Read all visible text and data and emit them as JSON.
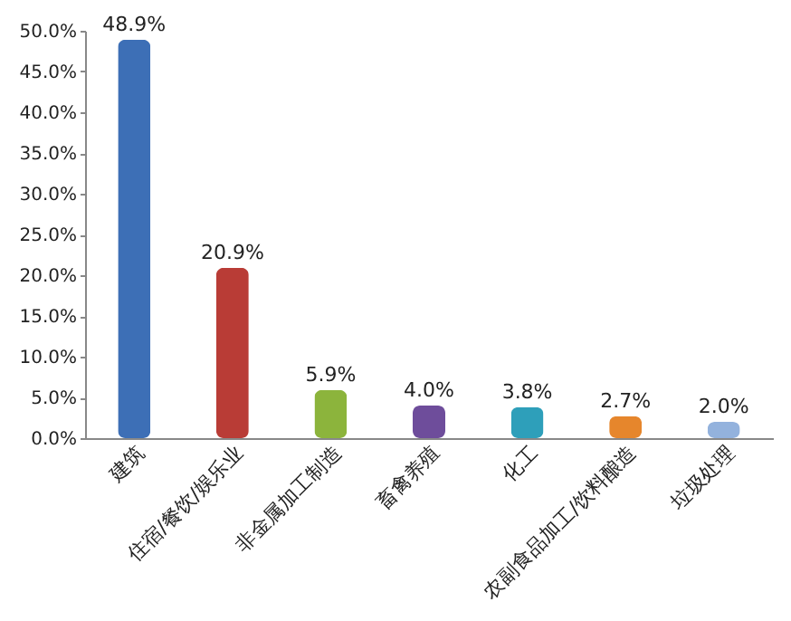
{
  "chart_data": {
    "type": "bar",
    "categories": [
      "建筑",
      "住宿/餐饮/娱乐业",
      "非金属加工制造",
      "畜禽养殖",
      "化工",
      "农副食品加工/饮料酿造",
      "垃圾处理"
    ],
    "values": [
      48.9,
      20.9,
      5.9,
      4.0,
      3.8,
      2.7,
      2.0
    ],
    "colors": [
      "#3d6fb6",
      "#b93c36",
      "#8cb43c",
      "#6e4d9b",
      "#2e9fba",
      "#e6862c",
      "#93b2dd"
    ],
    "value_labels": [
      "48.9%",
      "20.9%",
      "5.9%",
      "4.0%",
      "3.8%",
      "2.7%",
      "2.0%"
    ],
    "ylim": [
      0,
      50
    ],
    "yticks": [
      {
        "value": 0,
        "label": "0.0%"
      },
      {
        "value": 5,
        "label": "5.0%"
      },
      {
        "value": 10,
        "label": "10.0%"
      },
      {
        "value": 15,
        "label": "15.0%"
      },
      {
        "value": 20,
        "label": "20.0%"
      },
      {
        "value": 25,
        "label": "25.0%"
      },
      {
        "value": 30,
        "label": "30.0%"
      },
      {
        "value": 35,
        "label": "35.0%"
      },
      {
        "value": 40,
        "label": "40.0%"
      },
      {
        "value": 45,
        "label": "45.0%"
      },
      {
        "value": 50,
        "label": "50.0%"
      }
    ],
    "grid": false,
    "legend": false
  }
}
